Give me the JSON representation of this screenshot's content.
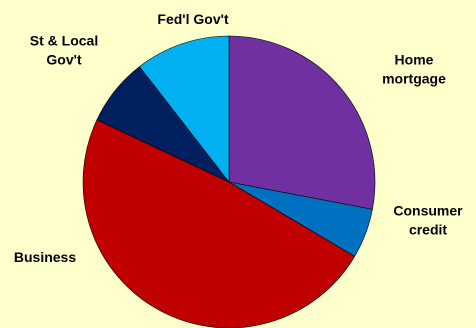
{
  "chart_data": {
    "type": "pie",
    "title": "",
    "start_angle_deg": 0,
    "direction": "clockwise",
    "slices": [
      {
        "label": "Home mortgage",
        "label_lines": [
          "Home",
          "mortgage"
        ],
        "value": 28.0,
        "color": "#7030A0"
      },
      {
        "label": "Consumer credit",
        "label_lines": [
          "Consumer",
          "credit"
        ],
        "value": 5.5,
        "color": "#0070C0"
      },
      {
        "label": "Business",
        "label_lines": [
          "Business"
        ],
        "value": 48.5,
        "color": "#C00000"
      },
      {
        "label": "St & Local Gov't",
        "label_lines": [
          "St & Local",
          "Gov't"
        ],
        "value": 7.5,
        "color": "#002060"
      },
      {
        "label": "Fed'l Gov't",
        "label_lines": [
          "Fed'l Gov't"
        ],
        "value": 10.5,
        "color": "#00B0F0"
      }
    ]
  }
}
